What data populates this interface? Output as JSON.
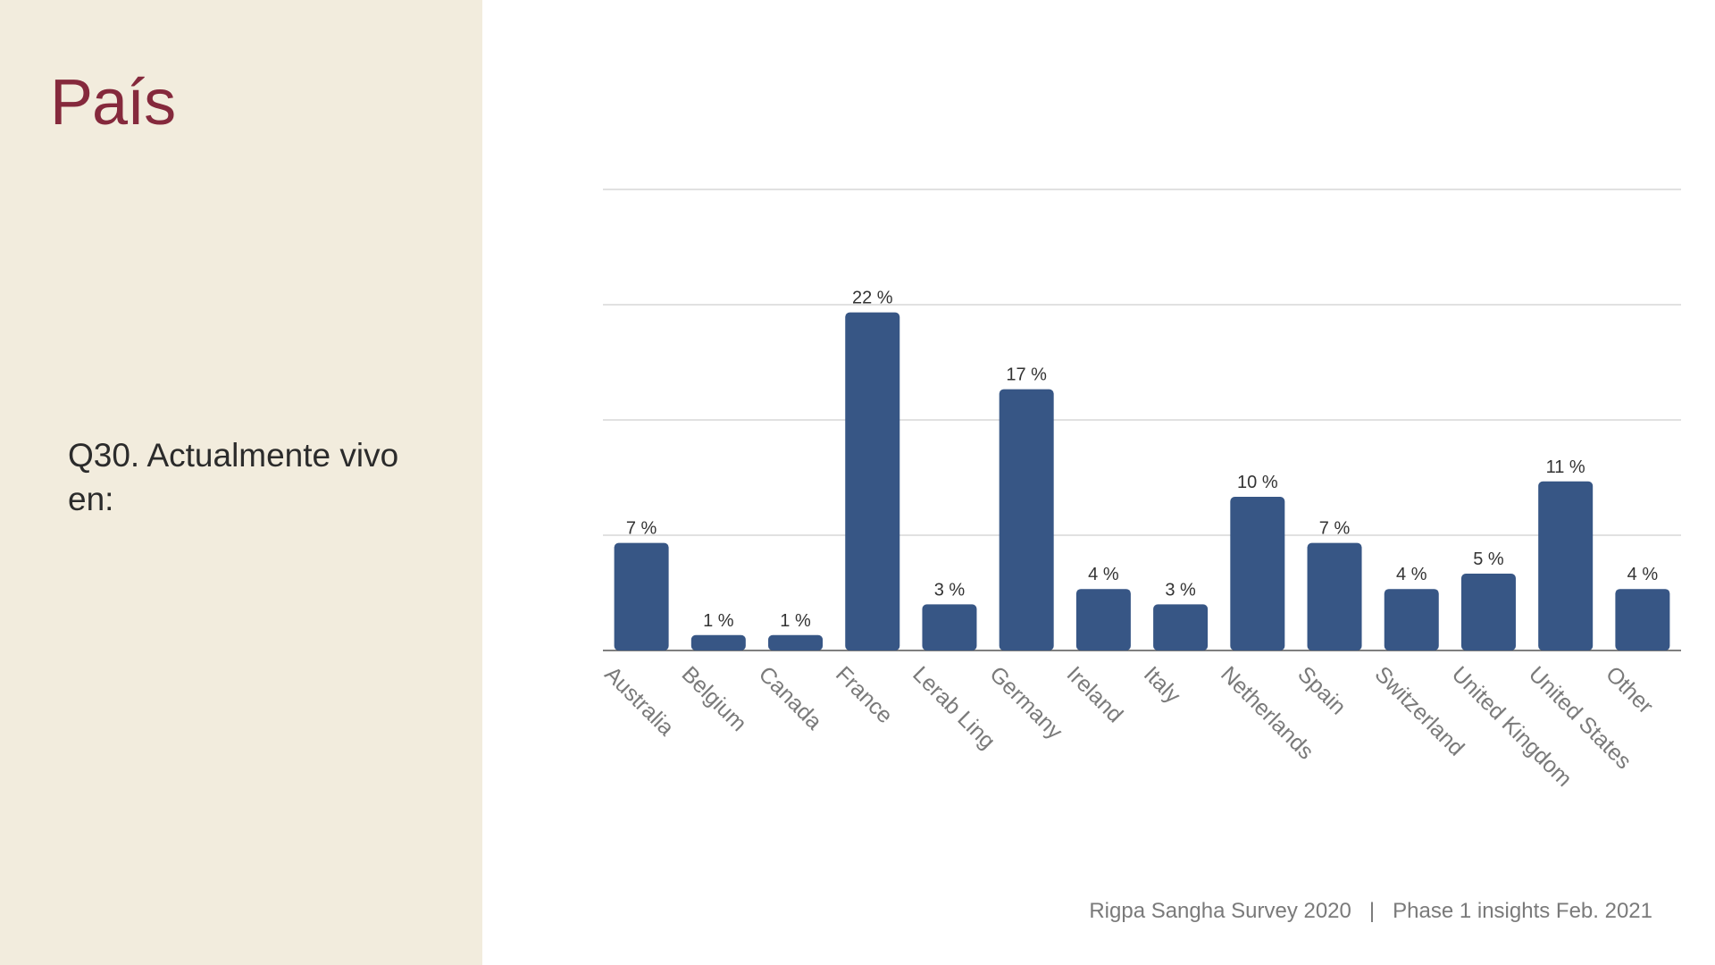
{
  "slide": {
    "title": "País",
    "question": "Q30. Actualmente vivo en:",
    "footer": {
      "survey": "Rigpa Sangha Survey 2020",
      "separator": "|",
      "phase": "Phase 1 insights Feb. 2021"
    }
  },
  "colors": {
    "panel_background": "#f2ecdd",
    "title": "#85293c",
    "bar": "#375685",
    "gridline": "#cfcfcf",
    "tick_label": "#7a7a7a",
    "data_label": "#333333"
  },
  "chart_data": {
    "type": "bar",
    "categories": [
      "Australia",
      "Belgium",
      "Canada",
      "France",
      "Lerab Ling",
      "Germany",
      "Ireland",
      "Italy",
      "Netherlands",
      "Spain",
      "Switzerland",
      "United Kingdom",
      "United States",
      "Other"
    ],
    "values": [
      7,
      1,
      1,
      22,
      3,
      17,
      4,
      3,
      10,
      7,
      4,
      5,
      11,
      4
    ],
    "value_labels": [
      "7 %",
      "1 %",
      "1 %",
      "22 %",
      "3 %",
      "17 %",
      "4 %",
      "3 %",
      "10 %",
      "7 %",
      "4 %",
      "5 %",
      "11 %",
      "4 %"
    ],
    "ylim": [
      0,
      30
    ],
    "gridlines": [
      0,
      7.5,
      15,
      22.5,
      30
    ],
    "grid": true,
    "title": "",
    "xlabel": "",
    "ylabel": "",
    "legend": "none"
  }
}
